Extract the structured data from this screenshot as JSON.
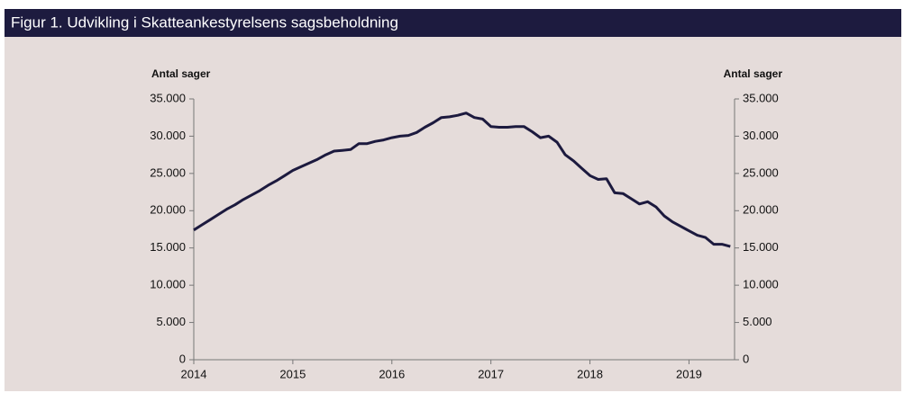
{
  "chart_data": {
    "type": "line",
    "title": "Figur 1. Udvikling i Skatteankestyrelsens sagsbeholdning",
    "y_label": "Antal sager",
    "y2_label": "Antal sager",
    "x": [
      2014,
      2014.083,
      2014.167,
      2014.25,
      2014.333,
      2014.417,
      2014.5,
      2014.583,
      2014.667,
      2014.75,
      2014.833,
      2014.917,
      2015,
      2015.083,
      2015.167,
      2015.25,
      2015.333,
      2015.417,
      2015.5,
      2015.583,
      2015.667,
      2015.75,
      2015.833,
      2015.917,
      2016,
      2016.083,
      2016.167,
      2016.25,
      2016.333,
      2016.417,
      2016.5,
      2016.583,
      2016.667,
      2016.75,
      2016.833,
      2016.917,
      2017,
      2017.083,
      2017.167,
      2017.25,
      2017.333,
      2017.417,
      2017.5,
      2017.583,
      2017.667,
      2017.75,
      2017.833,
      2017.917,
      2018,
      2018.083,
      2018.167,
      2018.25,
      2018.333,
      2018.417,
      2018.5,
      2018.583,
      2018.667,
      2018.75,
      2018.833,
      2018.917,
      2019,
      2019.083,
      2019.167,
      2019.25,
      2019.333,
      2019.417
    ],
    "series": [
      {
        "color": "#1c1a3e",
        "values": [
          17400,
          18100,
          18800,
          19500,
          20200,
          20800,
          21500,
          22100,
          22700,
          23400,
          24000,
          24700,
          25400,
          25900,
          26400,
          26900,
          27500,
          28000,
          28100,
          28200,
          29000,
          29000,
          29300,
          29500,
          29800,
          30000,
          30100,
          30500,
          31200,
          31800,
          32500,
          32600,
          32800,
          33100,
          32500,
          32300,
          31300,
          31200,
          31200,
          31300,
          31300,
          30600,
          29800,
          30000,
          29200,
          27500,
          26700,
          25700,
          24700,
          24200,
          24300,
          22400,
          22300,
          21600,
          20900,
          21200,
          20500,
          19300,
          18500,
          17900,
          17300,
          16700,
          16400,
          15500,
          15500,
          15200
        ]
      }
    ],
    "xlim": [
      2014,
      2019.46
    ],
    "xticks": [
      2014,
      2015,
      2016,
      2017,
      2018,
      2019
    ],
    "ylim": [
      0,
      35000
    ],
    "yticks": [
      {
        "value": 0,
        "label": "0"
      },
      {
        "value": 5000,
        "label": "5.000"
      },
      {
        "value": 10000,
        "label": "10.000"
      },
      {
        "value": 15000,
        "label": "15.000"
      },
      {
        "value": 20000,
        "label": "20.000"
      },
      {
        "value": 25000,
        "label": "25.000"
      },
      {
        "value": 30000,
        "label": "30.000"
      },
      {
        "value": 35000,
        "label": "35.000"
      }
    ],
    "y2lim": [
      0,
      35000
    ],
    "y2ticks": [
      {
        "value": 0,
        "label": "0"
      },
      {
        "value": 5000,
        "label": "5.000"
      },
      {
        "value": 10000,
        "label": "10.000"
      },
      {
        "value": 15000,
        "label": "15.000"
      },
      {
        "value": 20000,
        "label": "20.000"
      },
      {
        "value": 25000,
        "label": "25.000"
      },
      {
        "value": 30000,
        "label": "30.000"
      },
      {
        "value": 35000,
        "label": "35.000"
      }
    ]
  }
}
